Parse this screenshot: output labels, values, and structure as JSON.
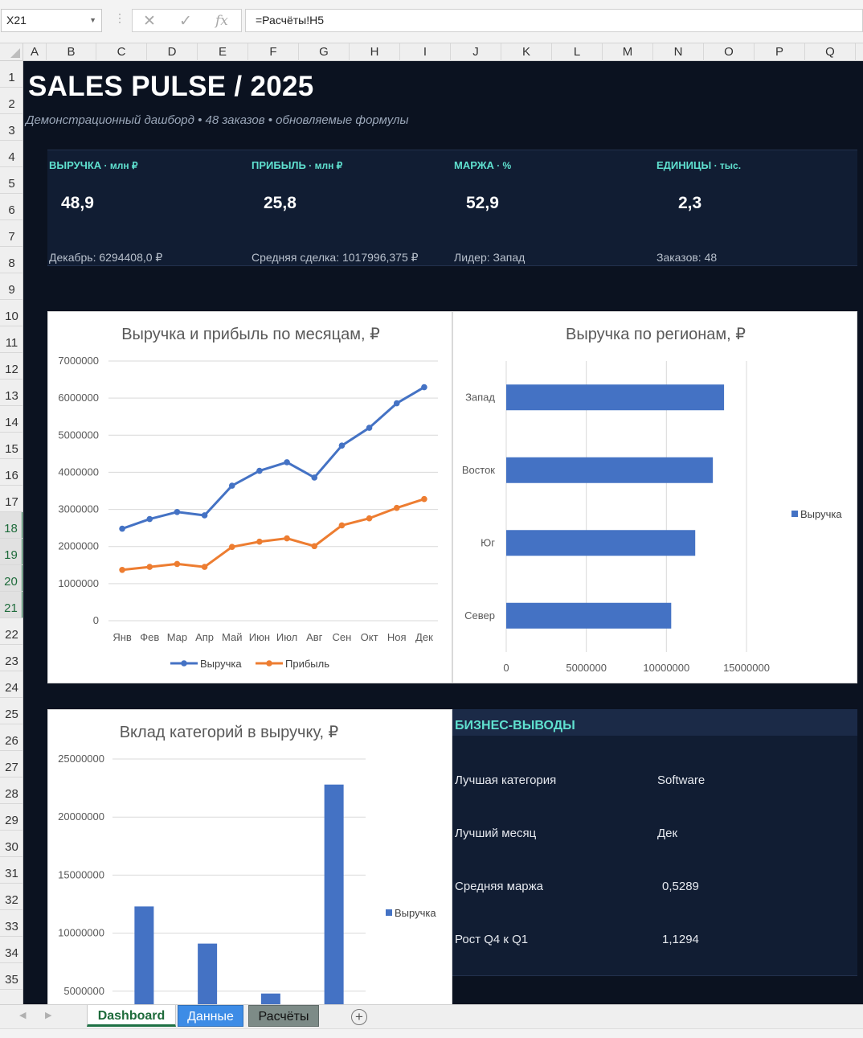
{
  "formula_bar": {
    "cell_ref": "X21",
    "formula": "=Расчёты!H5",
    "icons": [
      "cancel-icon",
      "enter-icon",
      "function-icon"
    ],
    "fx_label": "fx"
  },
  "columns": [
    "A",
    "B",
    "C",
    "D",
    "E",
    "F",
    "G",
    "H",
    "I",
    "J",
    "K",
    "L",
    "M",
    "N",
    "O",
    "P",
    "Q"
  ],
  "rows": [
    "1",
    "2",
    "3",
    "4",
    "5",
    "6",
    "7",
    "8",
    "9",
    "10",
    "11",
    "12",
    "13",
    "14",
    "15",
    "16",
    "17",
    "18",
    "19",
    "20",
    "21",
    "22",
    "23",
    "24",
    "25",
    "26",
    "27",
    "28",
    "29",
    "30",
    "31",
    "32",
    "33",
    "34",
    "35"
  ],
  "selected_rows": [
    "18",
    "19",
    "20",
    "21"
  ],
  "dashboard": {
    "title": "SALES PULSE / 2025",
    "subtitle": "Демонстрационный дашборд • 48 заказов • обновляемые формулы",
    "kpis": [
      {
        "label": "ВЫРУЧКА",
        "unit": " · млн ₽",
        "value": "48,9",
        "note": "Декабрь: 6294408,0 ₽"
      },
      {
        "label": "ПРИБЫЛЬ",
        "unit": " · млн ₽",
        "value": "25,8",
        "note": "Средняя сделка: 1017996,375 ₽"
      },
      {
        "label": "МАРЖА",
        "unit": " · %",
        "value": "52,9",
        "note": "Лидер: Запад"
      },
      {
        "label": "ЕДИНИЦЫ",
        "unit": " · тыс.",
        "value": "2,3",
        "note": "Заказов: 48"
      }
    ],
    "insights": {
      "title": "БИЗНЕС-ВЫВОДЫ",
      "items": [
        {
          "label": "Лучшая категория",
          "value": "Software"
        },
        {
          "label": "Лучший месяц",
          "value": "Дек"
        },
        {
          "label": "Средняя маржа",
          "value": "0,5289"
        },
        {
          "label": "Рост Q4 к Q1",
          "value": "1,1294"
        }
      ]
    },
    "colors": {
      "background": "#0b1220",
      "band": "#111d33",
      "accent": "#5fe0cf",
      "revenue": "#4472c4",
      "profit": "#ed7d31"
    }
  },
  "chart_data": [
    {
      "type": "line",
      "title": "Выручка и прибыль по месяцам, ₽",
      "categories": [
        "Янв",
        "Фев",
        "Мар",
        "Апр",
        "Май",
        "Июн",
        "Июл",
        "Авг",
        "Сен",
        "Окт",
        "Ноя",
        "Дек"
      ],
      "series": [
        {
          "name": "Выручка",
          "values": [
            2480000,
            2740000,
            2930000,
            2840000,
            3640000,
            4040000,
            4270000,
            3860000,
            4720000,
            5200000,
            5860000,
            6294408
          ]
        },
        {
          "name": "Прибыль",
          "values": [
            1370000,
            1450000,
            1530000,
            1450000,
            1990000,
            2130000,
            2220000,
            2010000,
            2570000,
            2760000,
            3040000,
            3280000
          ]
        }
      ],
      "yticks": [
        "0",
        "1000000",
        "2000000",
        "3000000",
        "4000000",
        "5000000",
        "6000000",
        "7000000"
      ],
      "ylim": [
        0,
        7000000
      ],
      "grid": true,
      "legend": "bottom"
    },
    {
      "type": "bar",
      "orientation": "horizontal",
      "title": "Выручка по регионам, ₽",
      "categories": [
        "Запад",
        "Восток",
        "Юг",
        "Север"
      ],
      "series": [
        {
          "name": "Выручка",
          "values": [
            13600000,
            12900000,
            11800000,
            10300000
          ]
        }
      ],
      "xticks": [
        "0",
        "5000000",
        "10000000",
        "15000000"
      ],
      "xlim": [
        0,
        15000000
      ],
      "grid": true,
      "legend": "right"
    },
    {
      "type": "bar",
      "title": "Вклад категорий в выручку, ₽",
      "categories": [
        "",
        "",
        "",
        ""
      ],
      "series": [
        {
          "name": "Выручка",
          "values": [
            12300000,
            9100000,
            4800000,
            22800000
          ]
        }
      ],
      "yticks": [
        "5000000",
        "10000000",
        "15000000",
        "20000000",
        "25000000"
      ],
      "ylim": [
        0,
        25000000
      ],
      "grid": true,
      "legend": "right"
    }
  ],
  "sheet_tabs": [
    {
      "label": "Dashboard",
      "active": true
    },
    {
      "label": "Данные",
      "active": false
    },
    {
      "label": "Расчёты",
      "active": false
    }
  ],
  "add_sheet_label": "+"
}
